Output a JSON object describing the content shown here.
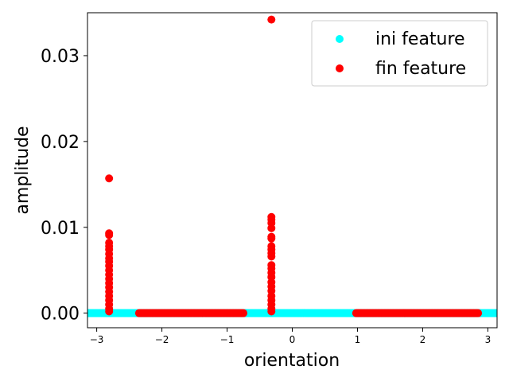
{
  "chart_data": {
    "type": "scatter",
    "title": "",
    "xlabel": "orientation",
    "ylabel": "amplitude",
    "xlim": [
      -3.1416,
      3.1416
    ],
    "ylim": [
      -0.0017,
      0.035
    ],
    "x_ticks": [
      -3,
      -2,
      -1,
      0,
      1,
      2,
      3
    ],
    "x_tick_labels": [
      "−3",
      "−2",
      "−1",
      "0",
      "1",
      "2",
      "3"
    ],
    "y_ticks": [
      0.0,
      0.01,
      0.02,
      0.03
    ],
    "y_tick_labels": [
      "0.00",
      "0.01",
      "0.02",
      "0.03"
    ],
    "grid": false,
    "legend_position": "top-right",
    "series": [
      {
        "name": "ini feature",
        "color": "#00ffff",
        "marker": "circle",
        "x_range": [
          -3.1416,
          3.1416
        ],
        "point_count": 400,
        "y_value": 0.0
      },
      {
        "name": "fin feature",
        "color": "#ff0000",
        "marker": "circle",
        "points": [
          [
            -0.32,
            0.0342
          ],
          [
            -2.81,
            0.0157
          ],
          [
            -2.81,
            0.0093
          ],
          [
            -2.81,
            0.0091
          ],
          [
            -2.81,
            0.0082
          ],
          [
            -2.81,
            0.0078
          ],
          [
            -2.81,
            0.0074
          ],
          [
            -2.81,
            0.0069
          ],
          [
            -2.81,
            0.0064
          ],
          [
            -2.81,
            0.006
          ],
          [
            -2.81,
            0.0055
          ],
          [
            -2.81,
            0.005
          ],
          [
            -2.81,
            0.0045
          ],
          [
            -2.81,
            0.004
          ],
          [
            -2.81,
            0.0035
          ],
          [
            -2.81,
            0.003
          ],
          [
            -2.81,
            0.0025
          ],
          [
            -2.81,
            0.002
          ],
          [
            -2.81,
            0.0015
          ],
          [
            -2.81,
            0.001
          ],
          [
            -2.81,
            0.0005
          ],
          [
            -2.81,
            0.0002
          ],
          [
            -0.32,
            0.0112
          ],
          [
            -0.32,
            0.0109
          ],
          [
            -0.32,
            0.0105
          ],
          [
            -0.32,
            0.0099
          ],
          [
            -0.32,
            0.0089
          ],
          [
            -0.32,
            0.0087
          ],
          [
            -0.32,
            0.0078
          ],
          [
            -0.32,
            0.0074
          ],
          [
            -0.32,
            0.007
          ],
          [
            -0.32,
            0.0066
          ],
          [
            -0.32,
            0.0056
          ],
          [
            -0.32,
            0.0052
          ],
          [
            -0.32,
            0.0047
          ],
          [
            -0.32,
            0.0042
          ],
          [
            -0.32,
            0.0036
          ],
          [
            -0.32,
            0.0031
          ],
          [
            -0.32,
            0.0026
          ],
          [
            -0.32,
            0.002
          ],
          [
            -0.32,
            0.0015
          ],
          [
            -0.32,
            0.001
          ],
          [
            -0.32,
            0.0005
          ],
          [
            -0.32,
            0.0002
          ]
        ],
        "baseline_segments": [
          [
            -2.35,
            -0.75
          ],
          [
            0.98,
            2.85
          ]
        ],
        "baseline_y": 0.0
      }
    ]
  }
}
